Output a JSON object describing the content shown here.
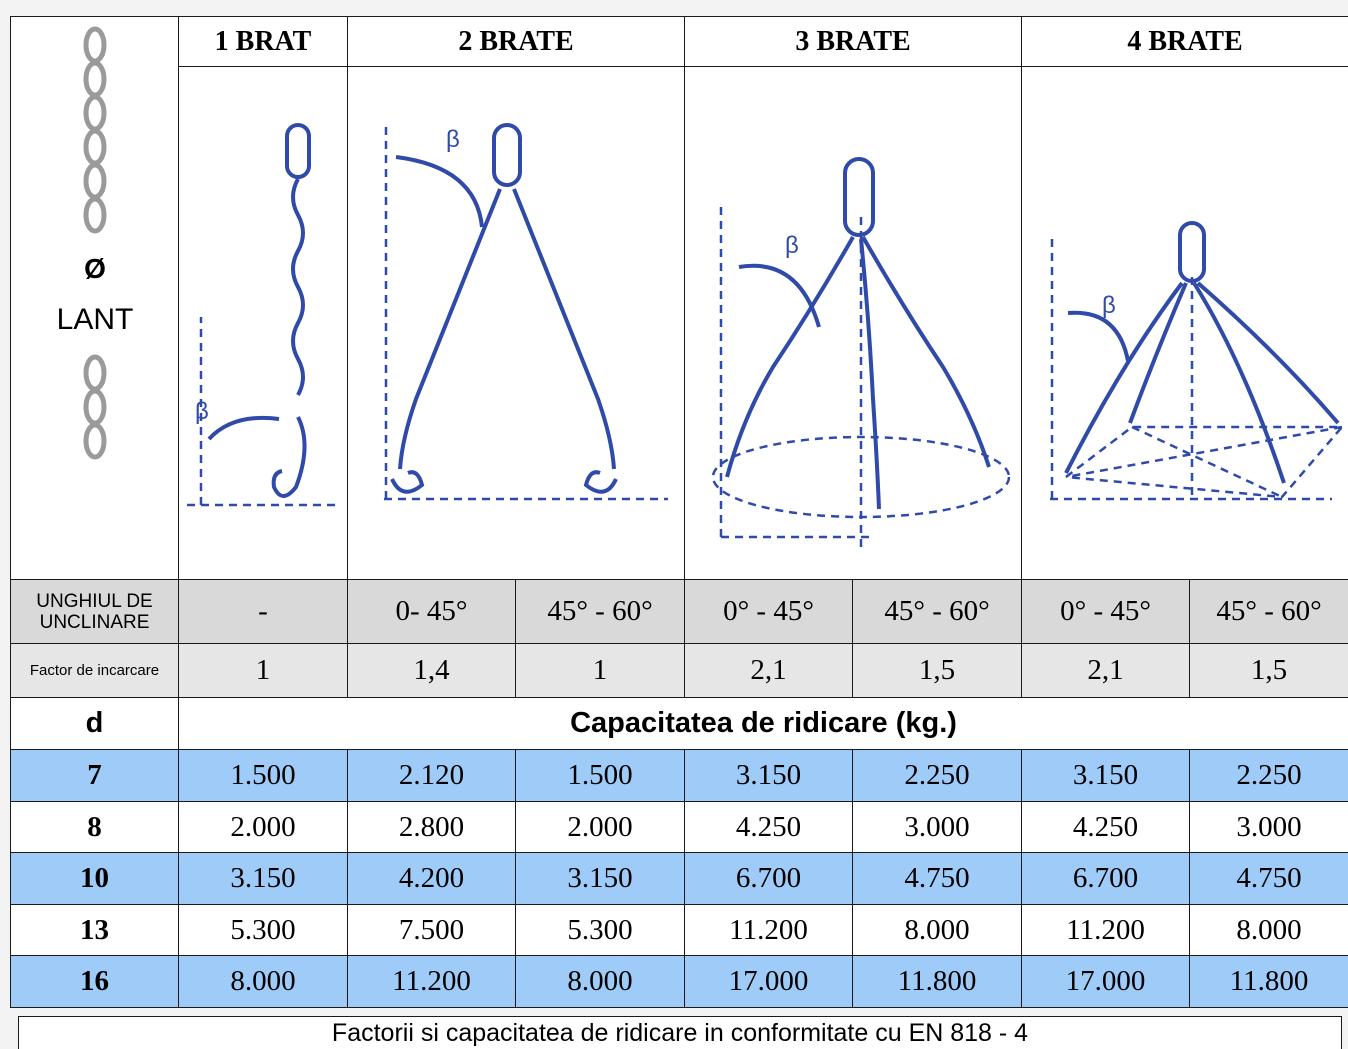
{
  "header": {
    "col1": "1 BRAT",
    "col2": "2 BRATE",
    "col3": "3 BRATE",
    "col4": "4 BRATE",
    "symbol": "Ø",
    "lant": "LANT"
  },
  "angle_row": {
    "label": "UNGHIUL DE UNCLINARE",
    "values": [
      "-",
      "0- 45°",
      "45° - 60°",
      "0° - 45°",
      "45° - 60°",
      "0° - 45°",
      "45° - 60°"
    ]
  },
  "factor_row": {
    "label": "Factor de incarcare",
    "values": [
      "1",
      "1,4",
      "1",
      "2,1",
      "1,5",
      "2,1",
      "1,5"
    ]
  },
  "capacity": {
    "d_label": "d",
    "title": "Capacitatea de ridicare (kg.)"
  },
  "rows": [
    {
      "d": "7",
      "values": [
        "1.500",
        "2.120",
        "1.500",
        "3.150",
        "2.250",
        "3.150",
        "2.250"
      ]
    },
    {
      "d": "8",
      "values": [
        "2.000",
        "2.800",
        "2.000",
        "4.250",
        "3.000",
        "4.250",
        "3.000"
      ]
    },
    {
      "d": "10",
      "values": [
        "3.150",
        "4.200",
        "3.150",
        "6.700",
        "4.750",
        "6.700",
        "4.750"
      ]
    },
    {
      "d": "13",
      "values": [
        "5.300",
        "7.500",
        "5.300",
        "11.200",
        "8.000",
        "11.200",
        "8.000"
      ]
    },
    {
      "d": "16",
      "values": [
        "8.000",
        "11.200",
        "8.000",
        "17.000",
        "11.800",
        "17.000",
        "11.800"
      ]
    }
  ],
  "diagram_labels": {
    "beta": "β"
  },
  "footer": "Factorii si capacitatea de ridicare in conformitate cu EN 818 - 4",
  "colors": {
    "blue_row": "#9ecbf7",
    "gray_row": "#d9d9d9",
    "chain_blue": "#2f4aa8"
  }
}
